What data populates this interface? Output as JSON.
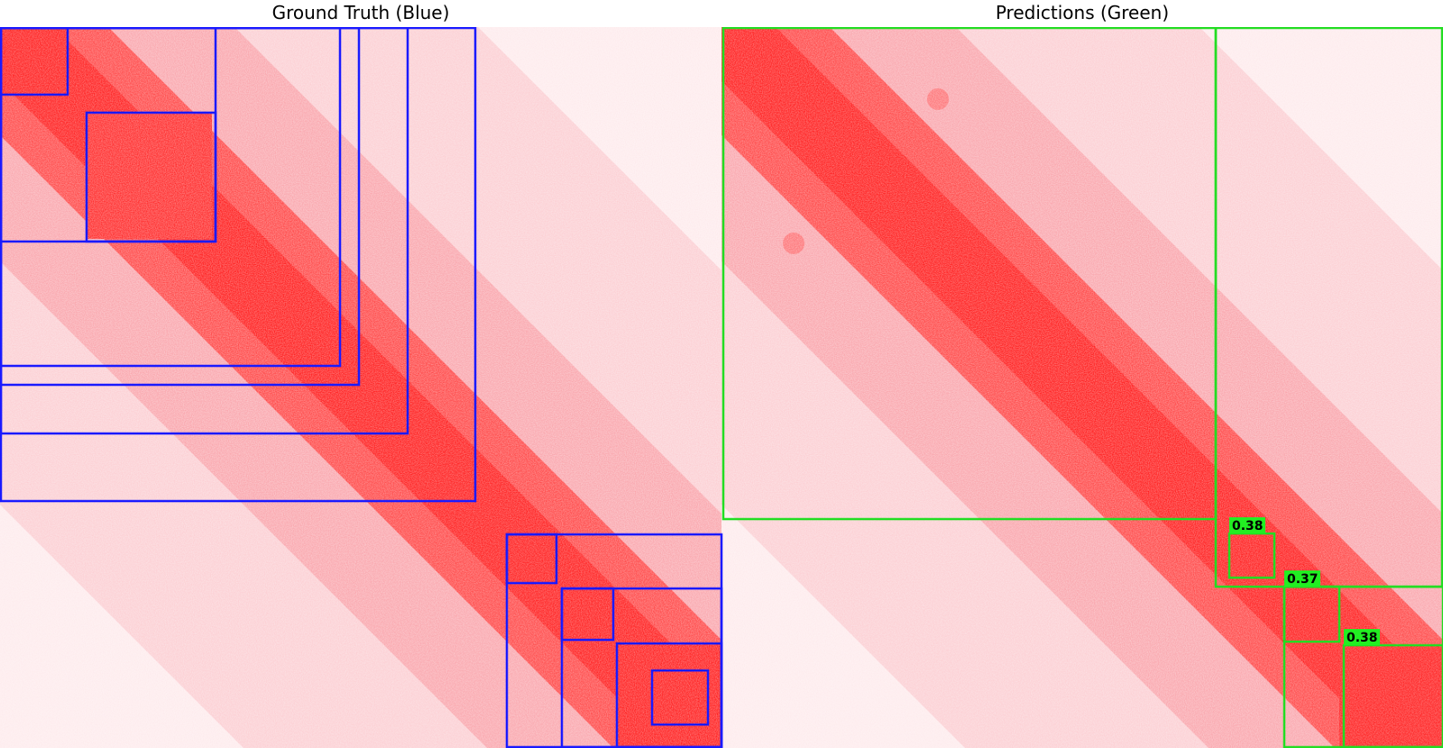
{
  "titles": {
    "left": "Ground Truth (Blue)",
    "right": "Predictions (Green)"
  },
  "colors": {
    "ground_truth_box": "#1a1aff",
    "prediction_box": "#22dd22",
    "heatmap": "#ff0000",
    "background": "#ffffff",
    "score_label_bg": "#22ee22",
    "score_label_text": "#000000"
  },
  "predictions": [
    {
      "score": "0.38"
    },
    {
      "score": "0.37"
    },
    {
      "score": "0.38"
    }
  ]
}
